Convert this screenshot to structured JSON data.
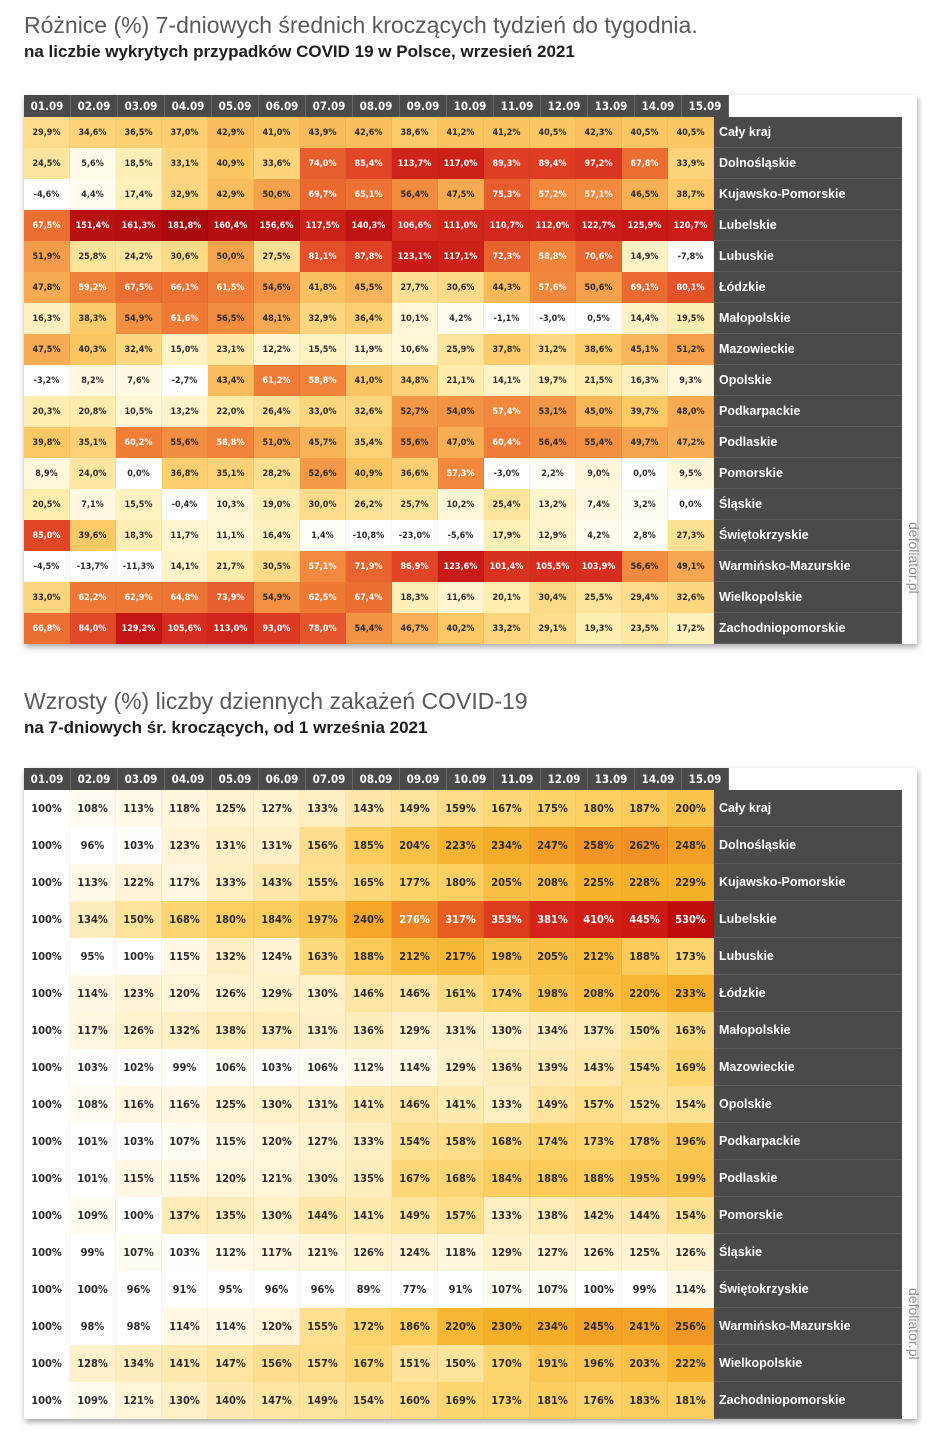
{
  "chart_data": [
    {
      "type": "heatmap",
      "title": "Różnice (%) 7-dniowych średnich kroczących tydzień do tygodnia.",
      "subtitle": "na liczbie wykrytych przypadków COVID 19 w Polsce, wrzesień 2021",
      "watermark": "defoliator.pl",
      "columns": [
        "01.09",
        "02.09",
        "03.09",
        "04.09",
        "05.09",
        "06.09",
        "07.09",
        "08.09",
        "09.09",
        "10.09",
        "11.09",
        "12.09",
        "13.09",
        "14.09",
        "15.09"
      ],
      "rows": [
        "Cały kraj",
        "Dolnośląskie",
        "Kujawsko-Pomorskie",
        "Lubelskie",
        "Lubuskie",
        "Łódzkie",
        "Małopolskie",
        "Mazowieckie",
        "Opolskie",
        "Podkarpackie",
        "Podlaskie",
        "Pomorskie",
        "Śląskie",
        "Świętokrzyskie",
        "Warmińsko-Mazurskie",
        "Wielkopolskie",
        "Zachodniopomorskie"
      ],
      "labels": [
        [
          "29,9%",
          "34,6%",
          "36,5%",
          "37,0%",
          "42,9%",
          "41,0%",
          "43,9%",
          "42,6%",
          "38,6%",
          "41,2%",
          "41,2%",
          "40,5%",
          "42,3%",
          "40,5%",
          "40,5%"
        ],
        [
          "24,5%",
          "5,6%",
          "18,5%",
          "33,1%",
          "40,9%",
          "33,6%",
          "74,0%",
          "85,4%",
          "113,7%",
          "117,0%",
          "89,3%",
          "89,4%",
          "97,2%",
          "67,8%",
          "33,9%"
        ],
        [
          "-4,6%",
          "4,4%",
          "17,4%",
          "32,9%",
          "42,9%",
          "50,6%",
          "69,7%",
          "65,1%",
          "56,4%",
          "47,5%",
          "75,3%",
          "57,2%",
          "57,1%",
          "46,5%",
          "38,7%"
        ],
        [
          "67,5%",
          "151,4%",
          "161,3%",
          "181,8%",
          "160,4%",
          "156,6%",
          "117,5%",
          "140,3%",
          "106,6%",
          "111,0%",
          "110,7%",
          "112,0%",
          "122,7%",
          "125,9%",
          "120,7%"
        ],
        [
          "51,9%",
          "25,8%",
          "24,2%",
          "30,6%",
          "50,0%",
          "27,5%",
          "81,1%",
          "87,8%",
          "123,1%",
          "117,1%",
          "72,3%",
          "58,8%",
          "70,6%",
          "14,9%",
          "-7,8%"
        ],
        [
          "47,8%",
          "59,2%",
          "67,5%",
          "66,1%",
          "61,5%",
          "54,6%",
          "41,8%",
          "45,5%",
          "27,7%",
          "30,6%",
          "44,3%",
          "57,6%",
          "50,6%",
          "69,1%",
          "80,1%"
        ],
        [
          "16,3%",
          "38,3%",
          "54,9%",
          "61,6%",
          "56,5%",
          "48,1%",
          "32,9%",
          "36,4%",
          "10,1%",
          "4,2%",
          "-1,1%",
          "-3,0%",
          "0,5%",
          "14,4%",
          "19,5%"
        ],
        [
          "47,5%",
          "40,3%",
          "32,4%",
          "15,0%",
          "23,1%",
          "12,2%",
          "15,5%",
          "11,9%",
          "10,6%",
          "25,9%",
          "37,8%",
          "31,2%",
          "38,6%",
          "45,1%",
          "51,2%"
        ],
        [
          "-3,2%",
          "8,2%",
          "7,6%",
          "-2,7%",
          "43,4%",
          "61,2%",
          "58,8%",
          "41,0%",
          "34,8%",
          "21,1%",
          "14,1%",
          "19,7%",
          "21,5%",
          "16,3%",
          "9,3%"
        ],
        [
          "20,3%",
          "20,8%",
          "10,5%",
          "13,2%",
          "22,0%",
          "26,4%",
          "33,0%",
          "32,6%",
          "52,7%",
          "54,0%",
          "57,4%",
          "53,1%",
          "45,0%",
          "39,7%",
          "48,0%"
        ],
        [
          "39,8%",
          "35,1%",
          "60,2%",
          "55,6%",
          "58,8%",
          "51,0%",
          "45,7%",
          "35,4%",
          "55,6%",
          "47,0%",
          "60,4%",
          "56,4%",
          "55,4%",
          "49,7%",
          "47,2%"
        ],
        [
          "8,9%",
          "24,0%",
          "0,0%",
          "36,8%",
          "35,1%",
          "28,2%",
          "52,6%",
          "40,9%",
          "36,6%",
          "57,3%",
          "-3,0%",
          "2,2%",
          "9,0%",
          "0,0%",
          "9,5%"
        ],
        [
          "20,5%",
          "7,1%",
          "15,5%",
          "-0,4%",
          "10,3%",
          "19,0%",
          "30,0%",
          "26,2%",
          "25,7%",
          "10,2%",
          "25,4%",
          "13,2%",
          "7,4%",
          "3,2%",
          "0,0%"
        ],
        [
          "85,0%",
          "39,6%",
          "18,3%",
          "11,7%",
          "11,1%",
          "16,4%",
          "1,4%",
          "-10,8%",
          "-23,0%",
          "-5,6%",
          "17,9%",
          "12,9%",
          "4,2%",
          "2,8%",
          "27,3%"
        ],
        [
          "-4,5%",
          "-13,7%",
          "-11,3%",
          "14,1%",
          "21,7%",
          "30,5%",
          "57,1%",
          "71,9%",
          "86,9%",
          "123,6%",
          "101,4%",
          "105,5%",
          "103,9%",
          "56,6%",
          "49,1%"
        ],
        [
          "33,0%",
          "62,2%",
          "62,9%",
          "64,8%",
          "73,9%",
          "54,9%",
          "62,5%",
          "67,4%",
          "18,3%",
          "11,6%",
          "20,1%",
          "30,4%",
          "25,5%",
          "29,4%",
          "32,6%"
        ],
        [
          "66,8%",
          "84,0%",
          "129,2%",
          "105,6%",
          "113,0%",
          "93,0%",
          "78,0%",
          "54,4%",
          "46,7%",
          "40,2%",
          "33,2%",
          "29,1%",
          "19,3%",
          "23,5%",
          "17,2%"
        ]
      ]
    },
    {
      "type": "heatmap",
      "title": "Wzrosty (%) liczby dziennych zakażeń COVID-19",
      "subtitle": "na 7-dniowych śr. kroczących, od 1 września 2021",
      "watermark": "defoliator.pl",
      "columns": [
        "01.09",
        "02.09",
        "03.09",
        "04.09",
        "05.09",
        "06.09",
        "07.09",
        "08.09",
        "09.09",
        "10.09",
        "11.09",
        "12.09",
        "13.09",
        "14.09",
        "15.09"
      ],
      "rows": [
        "Cały kraj",
        "Dolnośląskie",
        "Kujawsko-Pomorskie",
        "Lubelskie",
        "Lubuskie",
        "Łódzkie",
        "Małopolskie",
        "Mazowieckie",
        "Opolskie",
        "Podkarpackie",
        "Podlaskie",
        "Pomorskie",
        "Śląskie",
        "Świętokrzyskie",
        "Warmińsko-Mazurskie",
        "Wielkopolskie",
        "Zachodniopomorskie"
      ],
      "labels": [
        [
          "100%",
          "108%",
          "113%",
          "118%",
          "125%",
          "127%",
          "133%",
          "143%",
          "149%",
          "159%",
          "167%",
          "175%",
          "180%",
          "187%",
          "200%"
        ],
        [
          "100%",
          "96%",
          "103%",
          "123%",
          "131%",
          "131%",
          "156%",
          "185%",
          "204%",
          "223%",
          "234%",
          "247%",
          "258%",
          "262%",
          "248%"
        ],
        [
          "100%",
          "113%",
          "122%",
          "117%",
          "133%",
          "143%",
          "155%",
          "165%",
          "177%",
          "180%",
          "205%",
          "208%",
          "225%",
          "228%",
          "229%"
        ],
        [
          "100%",
          "134%",
          "150%",
          "168%",
          "180%",
          "184%",
          "197%",
          "240%",
          "276%",
          "317%",
          "353%",
          "381%",
          "410%",
          "445%",
          "530%"
        ],
        [
          "100%",
          "95%",
          "100%",
          "115%",
          "132%",
          "124%",
          "163%",
          "188%",
          "212%",
          "217%",
          "198%",
          "205%",
          "212%",
          "188%",
          "173%"
        ],
        [
          "100%",
          "114%",
          "123%",
          "120%",
          "126%",
          "129%",
          "130%",
          "146%",
          "146%",
          "161%",
          "174%",
          "198%",
          "208%",
          "220%",
          "233%"
        ],
        [
          "100%",
          "117%",
          "126%",
          "132%",
          "138%",
          "137%",
          "131%",
          "136%",
          "129%",
          "131%",
          "130%",
          "134%",
          "137%",
          "150%",
          "163%"
        ],
        [
          "100%",
          "103%",
          "102%",
          "99%",
          "106%",
          "103%",
          "106%",
          "112%",
          "114%",
          "129%",
          "136%",
          "139%",
          "143%",
          "154%",
          "169%"
        ],
        [
          "100%",
          "108%",
          "116%",
          "116%",
          "125%",
          "130%",
          "131%",
          "141%",
          "146%",
          "141%",
          "133%",
          "149%",
          "157%",
          "152%",
          "154%"
        ],
        [
          "100%",
          "101%",
          "103%",
          "107%",
          "115%",
          "120%",
          "127%",
          "133%",
          "154%",
          "158%",
          "168%",
          "174%",
          "173%",
          "178%",
          "196%"
        ],
        [
          "100%",
          "101%",
          "115%",
          "115%",
          "120%",
          "121%",
          "130%",
          "135%",
          "167%",
          "168%",
          "184%",
          "188%",
          "188%",
          "195%",
          "199%"
        ],
        [
          "100%",
          "109%",
          "100%",
          "137%",
          "135%",
          "130%",
          "144%",
          "141%",
          "149%",
          "157%",
          "133%",
          "138%",
          "142%",
          "144%",
          "154%"
        ],
        [
          "100%",
          "99%",
          "107%",
          "103%",
          "112%",
          "117%",
          "121%",
          "126%",
          "124%",
          "118%",
          "129%",
          "127%",
          "126%",
          "125%",
          "126%"
        ],
        [
          "100%",
          "100%",
          "96%",
          "91%",
          "95%",
          "96%",
          "96%",
          "89%",
          "77%",
          "91%",
          "107%",
          "107%",
          "100%",
          "99%",
          "114%"
        ],
        [
          "100%",
          "98%",
          "98%",
          "114%",
          "114%",
          "120%",
          "155%",
          "172%",
          "186%",
          "220%",
          "230%",
          "234%",
          "245%",
          "241%",
          "256%"
        ],
        [
          "100%",
          "128%",
          "134%",
          "141%",
          "147%",
          "156%",
          "157%",
          "167%",
          "151%",
          "150%",
          "170%",
          "191%",
          "196%",
          "203%",
          "222%"
        ],
        [
          "100%",
          "109%",
          "121%",
          "130%",
          "140%",
          "147%",
          "149%",
          "154%",
          "160%",
          "169%",
          "173%",
          "181%",
          "176%",
          "183%",
          "181%"
        ]
      ]
    }
  ]
}
